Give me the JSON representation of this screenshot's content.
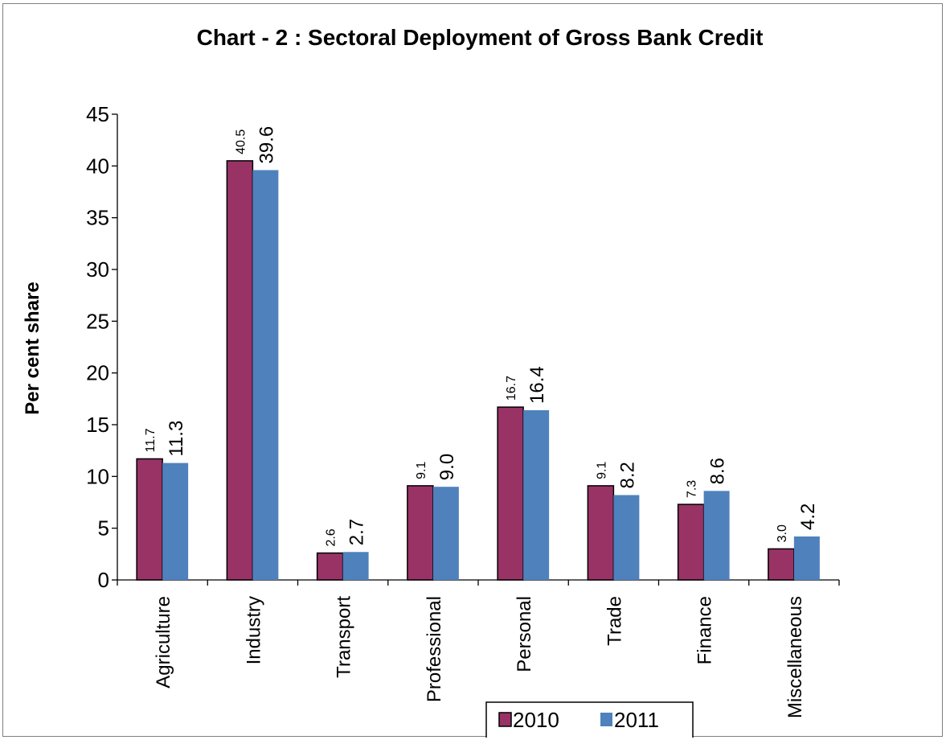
{
  "chart_data": {
    "type": "bar",
    "title": "Chart - 2 : Sectoral Deployment of Gross Bank Credit",
    "ylabel": "Per cent share",
    "xlabel": "",
    "ylim": [
      0,
      45
    ],
    "yticks": [
      0,
      5,
      10,
      15,
      20,
      25,
      30,
      35,
      40,
      45
    ],
    "categories": [
      "Agriculture",
      "Industry",
      "Transport",
      "Professional",
      "Personal",
      "Trade",
      "Finance",
      "Miscellaneous"
    ],
    "series": [
      {
        "name": "2010",
        "color": "#993366",
        "values": [
          11.7,
          40.5,
          2.6,
          9.1,
          16.7,
          9.1,
          7.3,
          3.0
        ],
        "labels": [
          "11.7",
          "40.5",
          "2.6",
          "9.1",
          "16.7",
          "9.1",
          "7.3",
          "3.0"
        ]
      },
      {
        "name": "2011",
        "color": "#4F81BD",
        "values": [
          11.3,
          39.6,
          2.7,
          9.0,
          16.4,
          8.2,
          8.6,
          4.2
        ],
        "labels": [
          "11.3",
          "39.6",
          "2.7",
          "9.0",
          "16.4",
          "8.2",
          "8.6",
          "4.2"
        ]
      }
    ],
    "grid": false,
    "legend_position": "bottom"
  }
}
